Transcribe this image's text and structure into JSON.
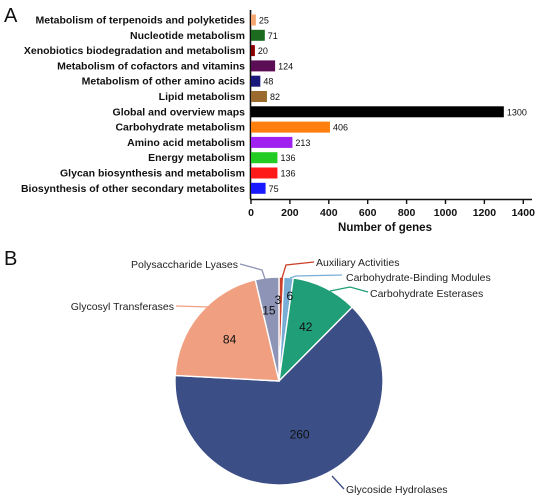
{
  "panels": {
    "a": "A",
    "b": "B"
  },
  "chart_data": [
    {
      "type": "bar",
      "orientation": "horizontal",
      "categories": [
        "Metabolism of terpenoids and polyketides",
        "Nucleotide metabolism",
        "Xenobiotics biodegradation and metabolism",
        "Metabolism of cofactors and vitamins",
        "Metabolism of other amino acids",
        "Lipid metabolism",
        "Global and overview maps",
        "Carbohydrate metabolism",
        "Amino acid metabolism",
        "Energy metabolism",
        "Glycan biosynthesis and metabolism",
        "Biosynthesis of other secondary metabolites"
      ],
      "values": [
        25,
        71,
        20,
        124,
        48,
        82,
        1300,
        406,
        213,
        136,
        136,
        75
      ],
      "value_labels": [
        "25",
        "71",
        "20",
        "124",
        "48",
        "82",
        "1300",
        "406",
        "213",
        "136",
        "136",
        "75"
      ],
      "colors": [
        "#f5a66e",
        "#1c6b1e",
        "#8b0000",
        "#5b0e55",
        "#1a1a7a",
        "#9a6a2e",
        "#000000",
        "#ff7f0e",
        "#a020f0",
        "#22cc22",
        "#ff1a1a",
        "#1a1aff"
      ],
      "xlabel": "Number of genes",
      "ylabel": "",
      "xlim": [
        0,
        1450
      ],
      "xticks": [
        0,
        200,
        400,
        600,
        800,
        1000,
        1200,
        1400
      ],
      "xtick_labels": [
        "0",
        "200",
        "400",
        "600",
        "800",
        "1000",
        "1200",
        "1400"
      ],
      "grid": false
    },
    {
      "type": "pie",
      "labels": [
        "Glycoside Hydrolases",
        "Glycosyl Transferases",
        "Polysaccharide Lyases",
        "Auxiliary Activities",
        "Carbohydrate-Binding Modules",
        "Carbohydrate Esterases"
      ],
      "values": [
        260,
        84,
        15,
        3,
        6,
        42
      ],
      "value_labels": [
        "260",
        "84",
        "15",
        "3",
        "6",
        "42"
      ],
      "colors": [
        "#3b4f86",
        "#f0a080",
        "#8e94b6",
        "#cc3f2a",
        "#78aed6",
        "#1f9e78"
      ],
      "legend": "callout labels"
    }
  ]
}
